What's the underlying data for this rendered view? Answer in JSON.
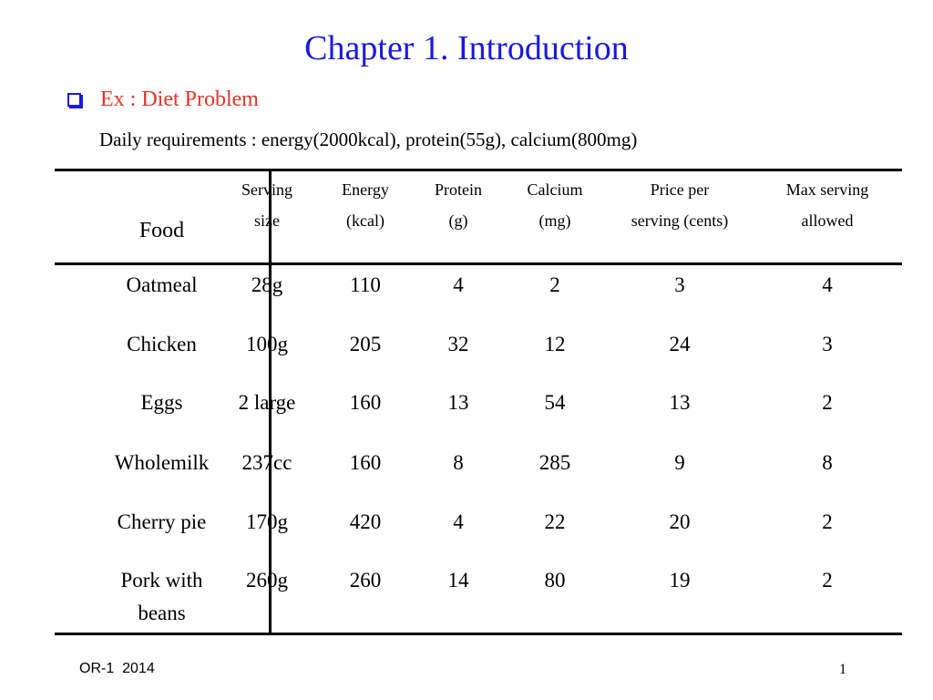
{
  "slide": {
    "title": "Chapter 1. Introduction",
    "bullet": "Ex : Diet Problem",
    "requirements": "Daily requirements : energy(2000kcal), protein(55g), calcium(800mg)",
    "colors": {
      "title": "#1a1adc",
      "bullet_text": "#e2342a",
      "bullet_icon": "#1a1adc"
    },
    "bullet_icon": "hollow-square-bullet"
  },
  "table": {
    "food_header": "Food",
    "headers": [
      {
        "line1": "Serving",
        "line2": "size"
      },
      {
        "line1": "Energy",
        "line2": "(kcal)"
      },
      {
        "line1": "Protein",
        "line2": "(g)"
      },
      {
        "line1": "Calcium",
        "line2": "(mg)"
      },
      {
        "line1": "Price per",
        "line2": "serving (cents)"
      },
      {
        "line1": "Max serving",
        "line2": "allowed"
      }
    ],
    "rows": [
      {
        "food": "Oatmeal",
        "food2": "",
        "values": [
          "28g",
          "110",
          "4",
          "2",
          "3",
          "4"
        ]
      },
      {
        "food": "Chicken",
        "food2": "",
        "values": [
          "100g",
          "205",
          "32",
          "12",
          "24",
          "3"
        ]
      },
      {
        "food": "Eggs",
        "food2": "",
        "values": [
          "2 large",
          "160",
          "13",
          "54",
          "13",
          "2"
        ]
      },
      {
        "food": "Wholemilk",
        "food2": "",
        "values": [
          "237cc",
          "160",
          "8",
          "285",
          "9",
          "8"
        ]
      },
      {
        "food": "Cherry pie",
        "food2": "",
        "values": [
          "170g",
          "420",
          "4",
          "22",
          "20",
          "2"
        ]
      },
      {
        "food": "Pork with",
        "food2": "beans",
        "values": [
          "260g",
          "260",
          "14",
          "80",
          "19",
          "2"
        ]
      }
    ]
  },
  "footer": {
    "left": "OR-1  2014",
    "page": "1"
  }
}
